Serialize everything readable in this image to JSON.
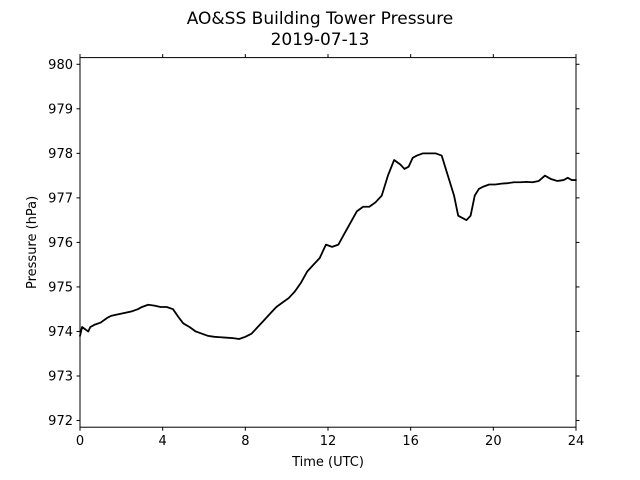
{
  "chart_data": {
    "type": "line",
    "title": "AO&SS Building Tower Pressure",
    "subtitle": "2019-07-13",
    "xlabel": "Time (UTC)",
    "ylabel": "Pressure (hPa)",
    "xlim": [
      0,
      24
    ],
    "ylim": [
      971.85,
      980.15
    ],
    "xticks": [
      0,
      4,
      8,
      12,
      16,
      20,
      24
    ],
    "yticks": [
      972,
      973,
      974,
      975,
      976,
      977,
      978,
      979,
      980
    ],
    "grid": false,
    "legend": "none",
    "series": [
      {
        "color": "#000000",
        "x": [
          0,
          0.1,
          0.25,
          0.4,
          0.5,
          0.7,
          1.0,
          1.3,
          1.5,
          1.8,
          2.0,
          2.2,
          2.5,
          2.8,
          3.0,
          3.3,
          3.6,
          3.9,
          4.2,
          4.5,
          4.8,
          5.0,
          5.3,
          5.6,
          5.9,
          6.2,
          6.5,
          6.8,
          7.1,
          7.4,
          7.7,
          8.0,
          8.3,
          8.6,
          8.9,
          9.2,
          9.5,
          9.8,
          10.1,
          10.4,
          10.7,
          11.0,
          11.3,
          11.6,
          11.9,
          12.2,
          12.5,
          12.8,
          13.1,
          13.4,
          13.7,
          14.0,
          14.3,
          14.6,
          14.9,
          15.2,
          15.5,
          15.7,
          15.9,
          16.1,
          16.3,
          16.6,
          16.9,
          17.2,
          17.5,
          17.8,
          18.1,
          18.3,
          18.5,
          18.7,
          18.9,
          19.1,
          19.3,
          19.5,
          19.8,
          20.1,
          20.4,
          20.7,
          21.0,
          21.3,
          21.6,
          21.9,
          22.2,
          22.5,
          22.8,
          23.1,
          23.4,
          23.6,
          23.8,
          24.0
        ],
        "y": [
          973.9,
          974.1,
          974.05,
          974.0,
          974.1,
          974.15,
          974.2,
          974.3,
          974.35,
          974.38,
          974.4,
          974.42,
          974.45,
          974.5,
          974.55,
          974.6,
          974.58,
          974.55,
          974.55,
          974.5,
          974.3,
          974.18,
          974.1,
          974.0,
          973.95,
          973.9,
          973.88,
          973.87,
          973.86,
          973.85,
          973.83,
          973.88,
          973.95,
          974.1,
          974.25,
          974.4,
          974.55,
          974.65,
          974.75,
          974.9,
          975.1,
          975.35,
          975.5,
          975.65,
          975.95,
          975.9,
          975.95,
          976.2,
          976.45,
          976.7,
          976.8,
          976.8,
          976.9,
          977.05,
          977.5,
          977.85,
          977.75,
          977.65,
          977.7,
          977.9,
          977.95,
          978.0,
          978.0,
          978.0,
          977.95,
          977.5,
          977.05,
          976.6,
          976.55,
          976.5,
          976.6,
          977.05,
          977.2,
          977.25,
          977.3,
          977.3,
          977.32,
          977.33,
          977.35,
          977.35,
          977.36,
          977.35,
          977.38,
          977.5,
          977.42,
          977.38,
          977.4,
          977.45,
          977.4,
          977.4
        ]
      }
    ]
  }
}
